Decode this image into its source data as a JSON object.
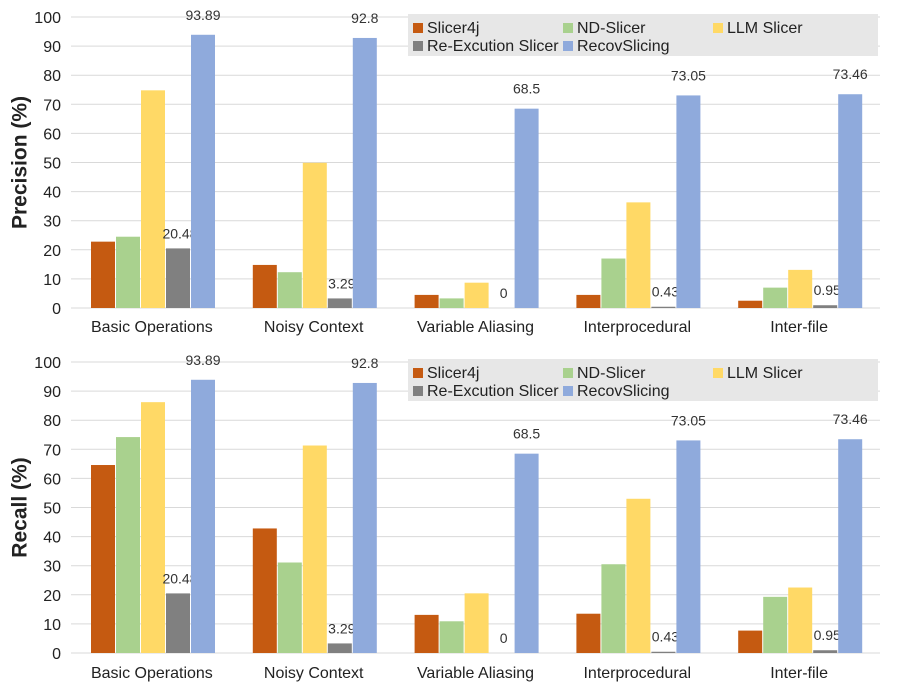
{
  "colors": {
    "Slicer4j": "#c55a11",
    "ND-Slicer": "#a9d18e",
    "LLM Slicer": "#ffd966",
    "Re-Excution Slicer": "#808080",
    "RecovSlicing": "#8faadc",
    "grid": "#d9d9d9",
    "legend_bg": "#e7e7e7",
    "axis_text": "#222222"
  },
  "chart_data": [
    {
      "type": "bar",
      "title": "",
      "ylabel": "Precision (%)",
      "xlabel": "",
      "ylim": [
        0,
        100
      ],
      "yticks": [
        0,
        10,
        20,
        30,
        40,
        50,
        60,
        70,
        80,
        90,
        100
      ],
      "grid": true,
      "legend": "top-right",
      "categories": [
        "Basic Operations",
        "Noisy Context",
        "Variable Aliasing",
        "Interprocedural",
        "Inter-file"
      ],
      "series": [
        {
          "name": "Slicer4j",
          "values": [
            22.8,
            14.8,
            4.5,
            4.5,
            2.5
          ]
        },
        {
          "name": "ND-Slicer",
          "values": [
            24.5,
            12.3,
            3.3,
            17.0,
            7.0
          ]
        },
        {
          "name": "LLM Slicer",
          "values": [
            74.8,
            49.9,
            8.7,
            36.3,
            13.1
          ]
        },
        {
          "name": "Re-Excution Slicer",
          "values": [
            20.48,
            3.29,
            0,
            0.43,
            0.95
          ]
        },
        {
          "name": "RecovSlicing",
          "values": [
            93.89,
            92.8,
            68.5,
            73.05,
            73.46
          ]
        }
      ],
      "data_labels": {
        "Re-Excution Slicer": [
          "20.48",
          "3.29",
          "0",
          "0.43",
          "0.95"
        ],
        "RecovSlicing": [
          "93.89",
          "92.8",
          "68.5",
          "73.05",
          "73.46"
        ]
      }
    },
    {
      "type": "bar",
      "title": "",
      "ylabel": "Recall (%)",
      "xlabel": "",
      "ylim": [
        0,
        100
      ],
      "yticks": [
        0,
        10,
        20,
        30,
        40,
        50,
        60,
        70,
        80,
        90,
        100
      ],
      "grid": true,
      "legend": "top-right",
      "categories": [
        "Basic Operations",
        "Noisy Context",
        "Variable Aliasing",
        "Interprocedural",
        "Inter-file"
      ],
      "series": [
        {
          "name": "Slicer4j",
          "values": [
            64.6,
            42.8,
            13.1,
            13.5,
            7.7
          ]
        },
        {
          "name": "ND-Slicer",
          "values": [
            74.2,
            31.1,
            10.9,
            30.5,
            19.3
          ]
        },
        {
          "name": "LLM Slicer",
          "values": [
            86.2,
            71.3,
            20.5,
            53.0,
            22.5
          ]
        },
        {
          "name": "Re-Excution Slicer",
          "values": [
            20.48,
            3.29,
            0,
            0.43,
            0.95
          ]
        },
        {
          "name": "RecovSlicing",
          "values": [
            93.89,
            92.8,
            68.5,
            73.05,
            73.46
          ]
        }
      ],
      "data_labels": {
        "Re-Excution Slicer": [
          "20.48",
          "3.29",
          "0",
          "0.43",
          "0.95"
        ],
        "RecovSlicing": [
          "93.89",
          "92.8",
          "68.5",
          "73.05",
          "73.46"
        ]
      }
    }
  ]
}
